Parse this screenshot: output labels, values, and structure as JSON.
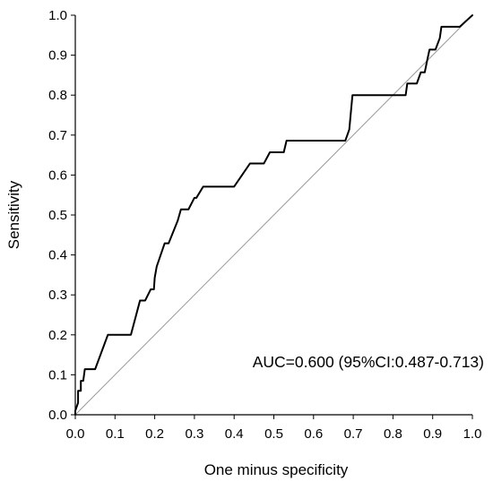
{
  "chart_data": {
    "type": "line",
    "xlabel": "One minus specificity",
    "ylabel": "Sensitivity",
    "xlim": [
      0.0,
      1.0
    ],
    "ylim": [
      0.0,
      1.0
    ],
    "x_ticks": [
      "0.0",
      "0.1",
      "0.2",
      "0.3",
      "0.4",
      "0.5",
      "0.6",
      "0.7",
      "0.8",
      "0.9",
      "1.0"
    ],
    "y_ticks": [
      "0.0",
      "0.1",
      "0.2",
      "0.3",
      "0.4",
      "0.5",
      "0.6",
      "0.7",
      "0.8",
      "0.9",
      "1.0"
    ],
    "grid": false,
    "annotation": "AUC=0.600 (95%CI:0.487-0.713)",
    "colors": {
      "roc_line": "#000000",
      "reference_line": "#999999",
      "axes": "#000000"
    },
    "series": [
      {
        "values": [
          [
            0.0,
            0.0
          ],
          [
            0.0,
            0.01
          ],
          [
            0.007,
            0.03
          ],
          [
            0.007,
            0.06
          ],
          [
            0.014,
            0.06
          ],
          [
            0.014,
            0.085
          ],
          [
            0.02,
            0.085
          ],
          [
            0.024,
            0.114
          ],
          [
            0.05,
            0.114
          ],
          [
            0.082,
            0.2
          ],
          [
            0.14,
            0.2
          ],
          [
            0.163,
            0.286
          ],
          [
            0.176,
            0.286
          ],
          [
            0.19,
            0.314
          ],
          [
            0.198,
            0.314
          ],
          [
            0.2,
            0.343
          ],
          [
            0.205,
            0.371
          ],
          [
            0.225,
            0.429
          ],
          [
            0.235,
            0.429
          ],
          [
            0.258,
            0.486
          ],
          [
            0.266,
            0.514
          ],
          [
            0.285,
            0.514
          ],
          [
            0.3,
            0.543
          ],
          [
            0.305,
            0.543
          ],
          [
            0.322,
            0.571
          ],
          [
            0.4,
            0.571
          ],
          [
            0.44,
            0.629
          ],
          [
            0.475,
            0.629
          ],
          [
            0.49,
            0.657
          ],
          [
            0.525,
            0.657
          ],
          [
            0.532,
            0.686
          ],
          [
            0.68,
            0.686
          ],
          [
            0.69,
            0.714
          ],
          [
            0.698,
            0.8
          ],
          [
            0.832,
            0.8
          ],
          [
            0.836,
            0.829
          ],
          [
            0.86,
            0.829
          ],
          [
            0.87,
            0.857
          ],
          [
            0.88,
            0.857
          ],
          [
            0.886,
            0.886
          ],
          [
            0.892,
            0.914
          ],
          [
            0.907,
            0.914
          ],
          [
            0.918,
            0.943
          ],
          [
            0.922,
            0.971
          ],
          [
            0.968,
            0.971
          ],
          [
            1.0,
            1.0
          ]
        ]
      },
      {
        "values": [
          [
            0.0,
            0.0
          ],
          [
            1.0,
            1.0
          ]
        ]
      }
    ]
  }
}
